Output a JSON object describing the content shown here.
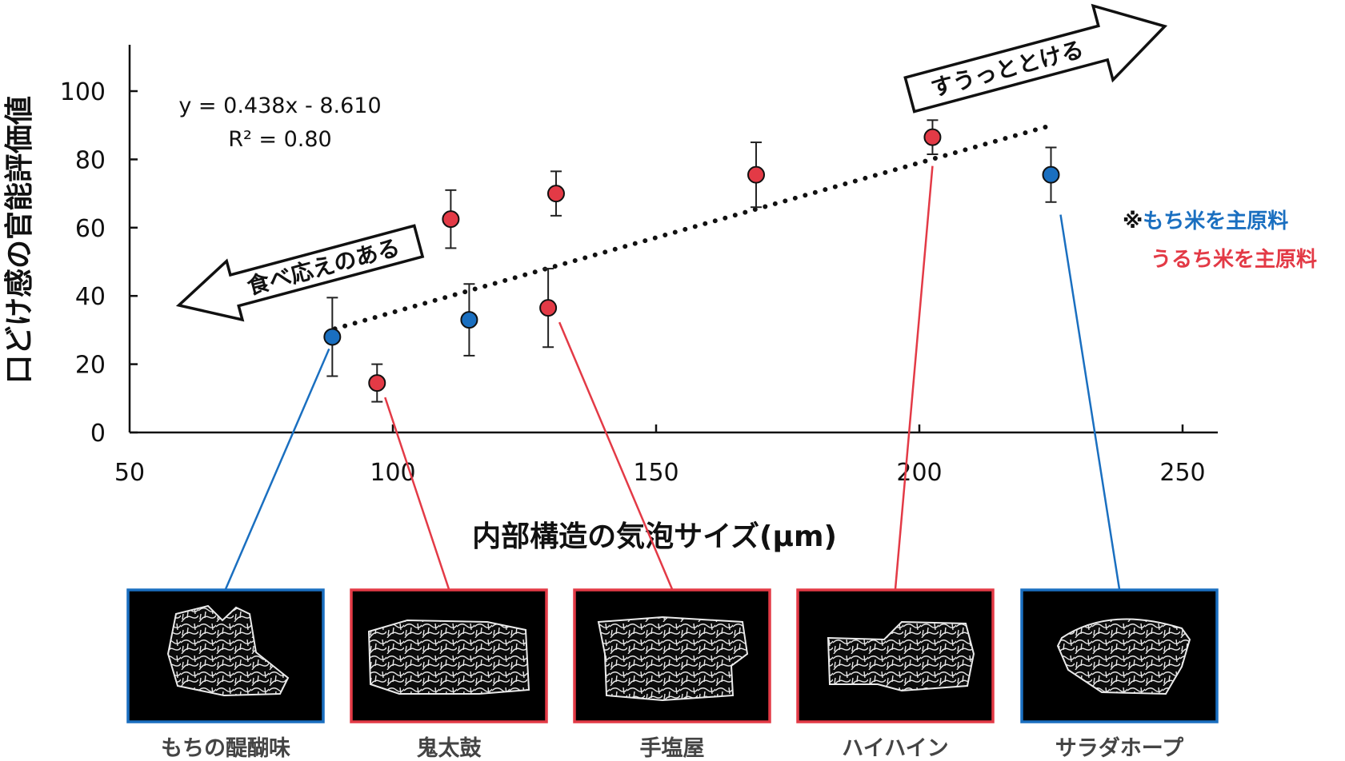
{
  "chart_data": {
    "type": "scatter",
    "xlabel": "内部構造の気泡サイズ(μm)",
    "ylabel": "口どけ感の官能評価値",
    "xlim": [
      50,
      260
    ],
    "ylim": [
      0,
      115
    ],
    "xticks": [
      50,
      100,
      150,
      200,
      250
    ],
    "yticks": [
      0,
      20,
      40,
      60,
      80,
      100
    ],
    "grid": false,
    "colors": {
      "mochi": "#1a6fc0",
      "uruchi": "#e33a46",
      "trend": "#111111"
    },
    "points": [
      {
        "x": 88.5,
        "y": 28,
        "err": 11.5,
        "group": "mochi"
      },
      {
        "x": 97,
        "y": 14.5,
        "err": 5.5,
        "group": "uruchi"
      },
      {
        "x": 111,
        "y": 62.5,
        "err": 8.5,
        "group": "uruchi"
      },
      {
        "x": 114.5,
        "y": 33,
        "err": 10.5,
        "group": "mochi"
      },
      {
        "x": 129.5,
        "y": 36.5,
        "err": 11.5,
        "group": "uruchi"
      },
      {
        "x": 131,
        "y": 70,
        "err": 6.5,
        "group": "uruchi"
      },
      {
        "x": 169,
        "y": 75.5,
        "err": 9.5,
        "group": "uruchi"
      },
      {
        "x": 202.5,
        "y": 86.5,
        "err": 5,
        "group": "uruchi"
      },
      {
        "x": 225,
        "y": 75.5,
        "err": 8,
        "group": "mochi"
      }
    ],
    "trendline": {
      "slope": 0.438,
      "intercept": -8.61,
      "x_range": [
        89,
        225
      ],
      "style": "dotted"
    },
    "equation": "y = 0.438x - 8.610",
    "r_squared": "R² = 0.80",
    "legend": {
      "mark": "※",
      "mochi": "もち米を主原料",
      "uruchi": "うるち米を主原料",
      "position": "right"
    },
    "annotations": {
      "left_arrow": "食べ応えのある",
      "right_arrow": "すうっととける"
    },
    "samples": [
      {
        "name": "もちの醍醐味",
        "group": "mochi",
        "point_index": 0
      },
      {
        "name": "鬼太鼓",
        "group": "uruchi",
        "point_index": 1
      },
      {
        "name": "手塩屋",
        "group": "uruchi",
        "point_index": 4
      },
      {
        "name": "ハイハイン",
        "group": "uruchi",
        "point_index": 7
      },
      {
        "name": "サラダホープ",
        "group": "mochi",
        "point_index": 8
      }
    ]
  }
}
